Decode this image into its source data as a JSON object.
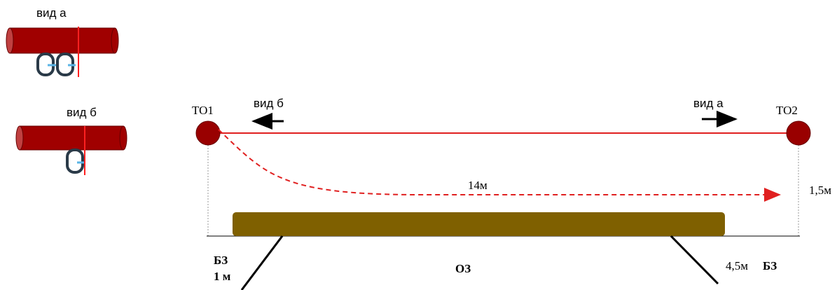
{
  "legend": {
    "view_a": "вид а",
    "view_b": "вид б"
  },
  "nodes": [
    {
      "label": "ТО1"
    },
    {
      "label": "ТО2"
    }
  ],
  "directions": {
    "left": "вид б",
    "right": "вид а"
  },
  "span_label": "14м",
  "sag_label": "1,5м",
  "zones": {
    "left_label": "БЗ",
    "left_width": "1 м",
    "center_label": "ОЗ",
    "right_width": "4,5м",
    "right_label": "БЗ"
  }
}
